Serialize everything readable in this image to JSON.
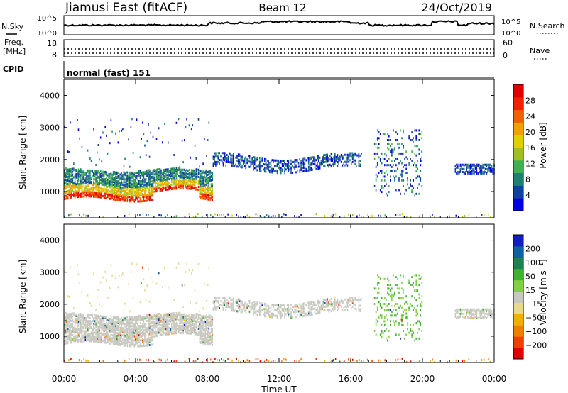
{
  "header": {
    "station": "Jiamusi East (fitACF)",
    "beam": "Beam 12",
    "date": "24/Oct/2019"
  },
  "top_panels": {
    "nsky_label": "N.Sky",
    "nsky_ticks": [
      "10^5",
      "10^0"
    ],
    "nsearch_label": "N.Search",
    "nsearch_ticks": [
      "10^5",
      "10^0"
    ],
    "freq_label": "Freq.",
    "freq_unit": "[MHz]",
    "freq_ticks": [
      "18",
      "8"
    ],
    "nave_label": "Nave",
    "nave_ticks": [
      "60",
      "0"
    ],
    "cpid_label": "CPID",
    "cpid_value": "normal (fast) 151"
  },
  "chart_data": [
    {
      "type": "heatmap",
      "name": "power",
      "ylabel": "Slant Range [km]",
      "ylim": [
        180,
        4500
      ],
      "yticks": [
        "4000",
        "3000",
        "2000",
        "1000"
      ],
      "xlim": [
        0,
        24
      ],
      "colorbar": {
        "label": "Power [dB]",
        "ticks": [
          "28",
          "24",
          "20",
          "16",
          "12",
          "8",
          "4"
        ],
        "colors": [
          "#0000e0",
          "#1040a0",
          "#208070",
          "#40b050",
          "#a0c020",
          "#e0d000",
          "#f0a000",
          "#f06000",
          "#f02000",
          "#e00000"
        ]
      },
      "regions": [
        {
          "t0": 0.0,
          "t1": 8.3,
          "r0": 800,
          "r1": 1700,
          "level": "high"
        },
        {
          "t0": 8.3,
          "t1": 16.6,
          "r0": 1700,
          "r1": 2200,
          "level": "low"
        },
        {
          "t0": 17.3,
          "t1": 20.0,
          "r0": 900,
          "r1": 3000,
          "level": "low"
        },
        {
          "t0": 21.8,
          "t1": 24.0,
          "r0": 1600,
          "r1": 1900,
          "level": "low"
        }
      ]
    },
    {
      "type": "heatmap",
      "name": "velocity",
      "ylabel": "Slant Range [km]",
      "ylim": [
        180,
        4500
      ],
      "yticks": [
        "4000",
        "3000",
        "2000",
        "1000"
      ],
      "xlim": [
        0,
        24
      ],
      "xlabel": "Time UT",
      "xticks": [
        "00:00",
        "04:00",
        "08:00",
        "12:00",
        "16:00",
        "20:00",
        "00:00"
      ],
      "colorbar": {
        "label": "Velocity [m s⁻¹]",
        "ticks": [
          "200",
          "100",
          "50",
          "15",
          "−15",
          "−50",
          "−100",
          "−200"
        ],
        "colors": [
          "#e00000",
          "#f04000",
          "#f08000",
          "#f0b000",
          "#e8d890",
          "#c8c8c0",
          "#80d040",
          "#40b030",
          "#208050",
          "#1060a0",
          "#1020c0"
        ]
      }
    }
  ]
}
